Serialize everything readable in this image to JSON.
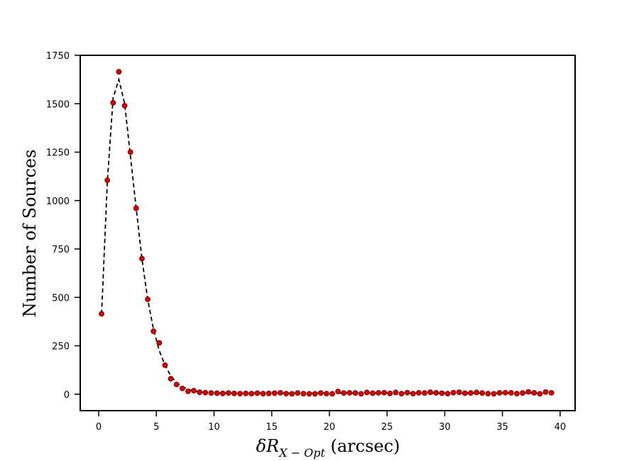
{
  "chart_data": {
    "type": "scatter",
    "xlabel_main": "δR",
    "xlabel_sub": "X − Opt",
    "xlabel_unit": " (arcsec)",
    "ylabel": "Number of Sources",
    "xlim": [
      -1.6,
      41.3
    ],
    "ylim": [
      -85,
      1750
    ],
    "xticks": [
      0,
      5,
      10,
      15,
      20,
      25,
      30,
      35,
      40
    ],
    "yticks": [
      0,
      250,
      500,
      750,
      1000,
      1250,
      1500,
      1750
    ],
    "grid": false,
    "series": [
      {
        "style": "points",
        "color": "#d40000",
        "x": [
          0.25,
          0.75,
          1.25,
          1.75,
          2.25,
          2.75,
          3.25,
          3.75,
          4.25,
          4.75,
          5.25,
          5.75,
          6.25,
          6.75,
          7.25,
          7.75,
          8.25,
          8.75,
          9.25,
          9.75,
          10.25,
          10.75,
          11.25,
          11.75,
          12.25,
          12.75,
          13.25,
          13.75,
          14.25,
          14.75,
          15.25,
          15.75,
          16.25,
          16.75,
          17.25,
          17.75,
          18.25,
          18.75,
          19.25,
          19.75,
          20.25,
          20.75,
          21.25,
          21.75,
          22.25,
          22.75,
          23.25,
          23.75,
          24.25,
          24.75,
          25.25,
          25.75,
          26.25,
          26.75,
          27.25,
          27.75,
          28.25,
          28.75,
          29.25,
          29.75,
          30.25,
          30.75,
          31.25,
          31.75,
          32.25,
          32.75,
          33.25,
          33.75,
          34.25,
          34.75,
          35.25,
          35.75,
          36.25,
          36.75,
          37.25,
          37.75,
          38.25,
          38.75,
          39.25
        ],
        "y": [
          415,
          1105,
          1505,
          1665,
          1490,
          1250,
          960,
          700,
          490,
          325,
          265,
          150,
          80,
          50,
          30,
          15,
          18,
          10,
          8,
          6,
          5,
          4,
          6,
          4,
          3,
          4,
          3,
          5,
          3,
          4,
          5,
          7,
          3,
          2,
          6,
          3,
          2,
          2,
          6,
          3,
          2,
          14,
          6,
          7,
          6,
          2,
          9,
          5,
          7,
          8,
          4,
          9,
          3,
          8,
          3,
          7,
          6,
          10,
          7,
          5,
          3,
          8,
          10,
          5,
          6,
          9,
          6,
          3,
          2,
          7,
          8,
          7,
          3,
          6,
          12,
          7,
          2,
          11,
          7
        ]
      },
      {
        "style": "dashed-line",
        "color": "#000000",
        "x": [
          0.25,
          0.75,
          1.25,
          1.75,
          2.25,
          2.75,
          3.25,
          3.75,
          4.25,
          4.75,
          5.25,
          5.75,
          6.25,
          6.75,
          7.25,
          7.75,
          8.25,
          8.75,
          9.25,
          9.75,
          10.25,
          12,
          14,
          16,
          18,
          20,
          22,
          24,
          26,
          28,
          30,
          32,
          34,
          36,
          38,
          39.25
        ],
        "y": [
          415,
          1100,
          1530,
          1625,
          1500,
          1230,
          960,
          700,
          490,
          335,
          225,
          150,
          95,
          60,
          38,
          25,
          17,
          12,
          9,
          7,
          6,
          5,
          5,
          5,
          5,
          5,
          5,
          5,
          5,
          5,
          5,
          5,
          5,
          5,
          5,
          5
        ]
      }
    ]
  }
}
